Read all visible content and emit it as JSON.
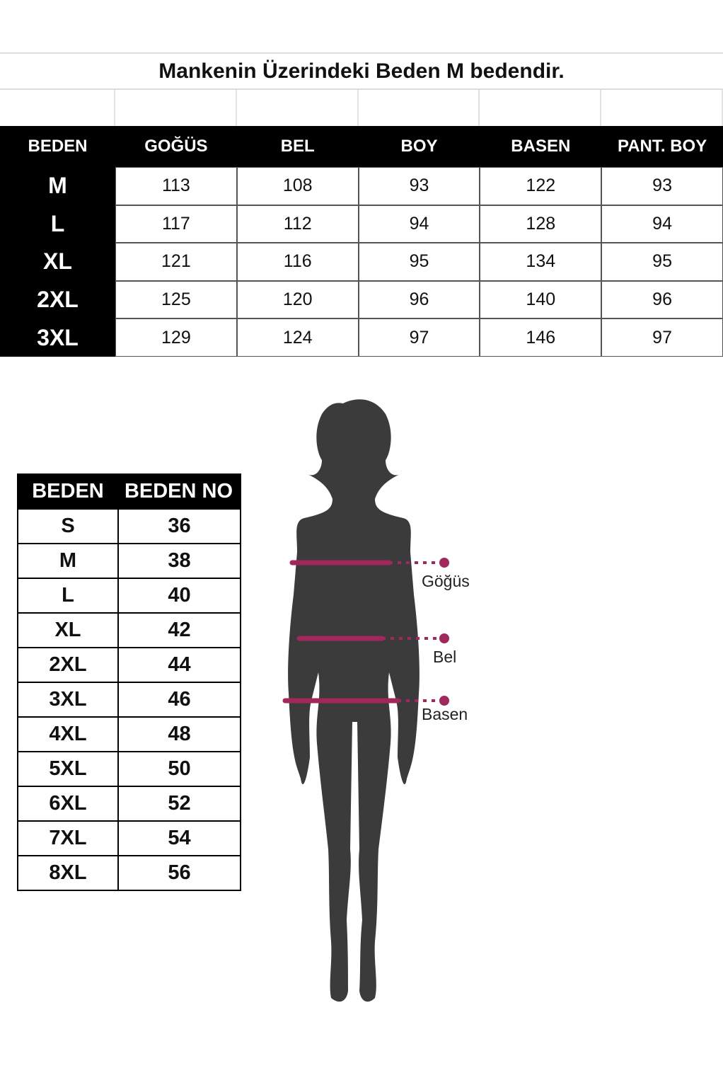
{
  "measurement_table": {
    "title": "Mankenin Üzerindeki Beden M bedendir.",
    "headers": [
      "BEDEN",
      "GOĞÜS",
      "BEL",
      "BOY",
      "BASEN",
      "PANT. BOY"
    ],
    "rows": [
      [
        "M",
        "113",
        "108",
        "93",
        "122",
        "93"
      ],
      [
        "L",
        "117",
        "112",
        "94",
        "128",
        "94"
      ],
      [
        "XL",
        "121",
        "116",
        "95",
        "134",
        "95"
      ],
      [
        "2XL",
        "125",
        "120",
        "96",
        "140",
        "96"
      ],
      [
        "3XL",
        "129",
        "124",
        "97",
        "146",
        "97"
      ]
    ]
  },
  "size_table": {
    "headers": [
      "BEDEN",
      "BEDEN NO"
    ],
    "rows": [
      [
        "S",
        "36"
      ],
      [
        "M",
        "38"
      ],
      [
        "L",
        "40"
      ],
      [
        "XL",
        "42"
      ],
      [
        "2XL",
        "44"
      ],
      [
        "3XL",
        "46"
      ],
      [
        "4XL",
        "48"
      ],
      [
        "5XL",
        "50"
      ],
      [
        "6XL",
        "52"
      ],
      [
        "7XL",
        "54"
      ],
      [
        "8XL",
        "56"
      ]
    ]
  },
  "figure": {
    "labels": {
      "chest": "Göğüs",
      "waist": "Bel",
      "hip": "Basen"
    },
    "silhouette_color": "#3b3b3b",
    "measure_color": "#a3265c"
  }
}
